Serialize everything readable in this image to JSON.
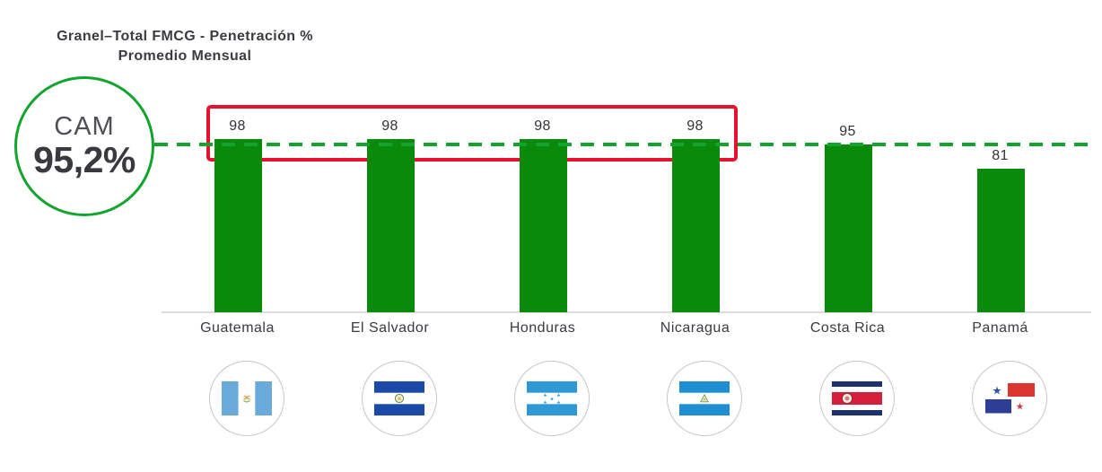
{
  "title": {
    "line1": "Granel–Total FMCG - Penetración %",
    "line2": "Promedio Mensual"
  },
  "cam_badge": {
    "label": "CAM",
    "value": "95,2%"
  },
  "chart_data": {
    "type": "bar",
    "title": "Granel–Total FMCG - Penetración % Promedio Mensual",
    "categories": [
      "Guatemala",
      "El Salvador",
      "Honduras",
      "Nicaragua",
      "Costa Rica",
      "Panamá"
    ],
    "values": [
      98,
      98,
      98,
      98,
      95,
      81
    ],
    "xlabel": "",
    "ylabel": "Penetración %",
    "ylim": [
      0,
      110
    ],
    "grid": false,
    "legend": false,
    "bar_color": "#0a8a0a",
    "reference_line": {
      "value": 95.2,
      "label": "CAM 95,2%",
      "style": "dashed",
      "color": "#12a42c"
    },
    "highlight_box": {
      "categories": [
        "Guatemala",
        "El Salvador",
        "Honduras",
        "Nicaragua"
      ],
      "color": "#e8112d"
    },
    "axis_color": "#dcdcdc",
    "flag_icons": [
      "flag-guatemala-icon",
      "flag-el-salvador-icon",
      "flag-honduras-icon",
      "flag-nicaragua-icon",
      "flag-costa-rica-icon",
      "flag-panama-icon"
    ]
  }
}
